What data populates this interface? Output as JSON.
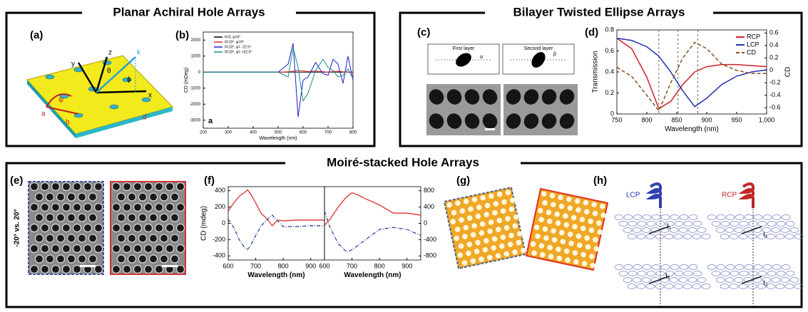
{
  "sections": [
    "Planar Achiral Hole Arrays",
    "Bilayer Twisted Ellipse Arrays",
    "Moiré-stacked Hole Arrays"
  ],
  "panel_labels": [
    "(a)",
    "(b)",
    "(c)",
    "(d)",
    "(e)",
    "(f)",
    "(g)",
    "(h)"
  ],
  "panel_a": {
    "labels": [
      "z",
      "y",
      "x",
      "k",
      "θ",
      "ϕ",
      "a",
      "ψ",
      "b",
      "d"
    ]
  },
  "panel_b": {
    "type": "line",
    "inset_label": "a",
    "xlabel": "Wavelength (nm)",
    "ylabel": "CD (mDeg)",
    "xlim": [
      200,
      800
    ],
    "xticks": [
      200,
      300,
      400,
      500,
      600,
      700,
      800
    ],
    "ylim": [
      -3500,
      2500
    ],
    "yticks": [
      -3000,
      -2000,
      -1000,
      0,
      1000,
      2000
    ],
    "x": [
      200,
      250,
      300,
      350,
      400,
      450,
      500,
      540,
      560,
      580,
      600,
      620,
      650,
      680,
      700,
      720,
      740,
      760,
      780,
      800
    ],
    "series": [
      {
        "name": "θ=0, φ=0⁰",
        "color": "#000000",
        "values": [
          0,
          0,
          0,
          0,
          0,
          0,
          0,
          0,
          0,
          0,
          0,
          0,
          0,
          0,
          0,
          0,
          0,
          0,
          0,
          0
        ]
      },
      {
        "name": "θ=10⁰, φ=0⁰",
        "color": "#e02020",
        "values": [
          0,
          0,
          0,
          0,
          0,
          0,
          0,
          20,
          60,
          100,
          80,
          40,
          60,
          30,
          0,
          40,
          60,
          20,
          0,
          0
        ]
      },
      {
        "name": "θ=10⁰, φ= -22.5⁰",
        "color": "#2020d0",
        "values": [
          0,
          0,
          0,
          0,
          0,
          0,
          0,
          500,
          1800,
          -2800,
          -500,
          -300,
          600,
          -100,
          -200,
          800,
          500,
          -700,
          1000,
          -500
        ]
      },
      {
        "name": "θ=10⁰, φ= +22.5⁰",
        "color": "#1a9080",
        "values": [
          0,
          0,
          0,
          0,
          0,
          0,
          0,
          -300,
          1500,
          300,
          -1800,
          -1300,
          100,
          800,
          300,
          100,
          -300,
          -200,
          200,
          -400
        ]
      }
    ]
  },
  "panel_c": {
    "first_layer": "First layer",
    "second_layer": "Second layer",
    "alpha": "α",
    "beta": "β"
  },
  "panel_d": {
    "type": "line",
    "xlabel": "Wavelength (nm)",
    "ylabel": "Transmission",
    "y2label": "CD",
    "xlim": [
      750,
      1000
    ],
    "xticks": [
      750,
      800,
      850,
      900,
      950,
      {
        "value": 1000,
        "label": "1,000"
      }
    ],
    "ylim": [
      0,
      0.8
    ],
    "yticks": [
      0,
      0.2,
      0.4,
      0.6,
      0.8
    ],
    "y2lim": [
      -0.7,
      0.65
    ],
    "y2ticks": [
      -0.6,
      -0.4,
      -0.2,
      0,
      0.2,
      0.4,
      0.6
    ],
    "vlines": [
      820,
      852,
      885
    ],
    "x": [
      750,
      775,
      800,
      820,
      840,
      860,
      880,
      900,
      925,
      950,
      975,
      1000
    ],
    "series": [
      {
        "name": "RCP",
        "color": "#d0202a",
        "values": [
          0.72,
          0.62,
          0.35,
          0.05,
          0.12,
          0.28,
          0.4,
          0.45,
          0.47,
          0.47,
          0.46,
          0.45
        ]
      },
      {
        "name": "LCP",
        "color": "#2030b0",
        "values": [
          0.72,
          0.7,
          0.64,
          0.55,
          0.4,
          0.22,
          0.07,
          0.15,
          0.28,
          0.36,
          0.4,
          0.42
        ]
      },
      {
        "name": "CD",
        "color": "#8a5020",
        "dash": true,
        "axis": "y2",
        "values": [
          0.05,
          -0.1,
          -0.4,
          -0.65,
          -0.2,
          0.2,
          0.45,
          0.35,
          0.1,
          0,
          -0.05,
          -0.05
        ]
      }
    ]
  },
  "panel_e": {
    "side_label": "-20° vs. 20°"
  },
  "panel_f": [
    {
      "type": "line",
      "xlabel": "Wavelength (nm)",
      "ylabel": "CD (mdeg)",
      "xlim": [
        600,
        950
      ],
      "xticks": [
        600,
        700,
        800,
        900
      ],
      "ylim": [
        -450,
        450
      ],
      "yticks": [
        -400,
        -200,
        0,
        200,
        400
      ],
      "x": [
        600,
        620,
        640,
        660,
        670,
        680,
        700,
        720,
        740,
        760,
        780,
        800,
        850,
        900,
        950
      ],
      "series": [
        {
          "color": "#e03030",
          "values": [
            150,
            250,
            330,
            380,
            410,
            370,
            250,
            120,
            60,
            -30,
            40,
            30,
            40,
            40,
            40
          ]
        },
        {
          "color": "#3040a0",
          "dash": true,
          "values": [
            50,
            -50,
            -200,
            -300,
            -320,
            -280,
            -150,
            -30,
            40,
            100,
            30,
            -40,
            -40,
            -30,
            -30
          ]
        }
      ]
    },
    {
      "type": "line",
      "xlabel": "Wavelength (nm)",
      "xlim": [
        600,
        950
      ],
      "xticks": [
        600,
        700,
        800,
        900
      ],
      "ylim": [
        -900,
        900
      ],
      "yticks": [
        -800,
        -400,
        0,
        400,
        800
      ],
      "x": [
        600,
        620,
        650,
        680,
        700,
        720,
        750,
        800,
        850,
        900,
        950
      ],
      "series": [
        {
          "color": "#e03030",
          "values": [
            -50,
            100,
            400,
            650,
            750,
            700,
            600,
            450,
            250,
            250,
            200
          ]
        },
        {
          "color": "#3040a0",
          "dash": true,
          "values": [
            300,
            -100,
            -500,
            -700,
            -650,
            -550,
            -400,
            -150,
            -100,
            -150,
            -300
          ]
        }
      ]
    }
  ],
  "panel_h": {
    "labels": [
      "LCP",
      "RCP",
      "I₁",
      "I₂",
      "I₁",
      "I₂"
    ]
  }
}
